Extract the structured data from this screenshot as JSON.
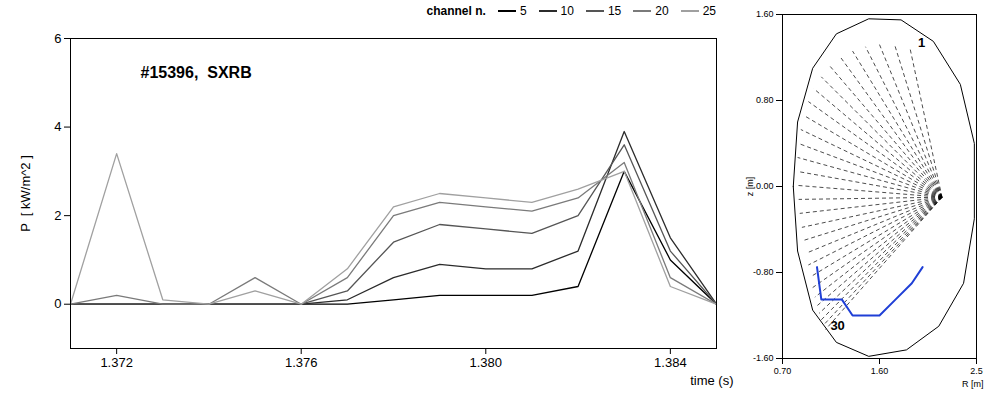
{
  "chart_data": [
    {
      "type": "line",
      "title": "#15396,  SXRB",
      "x_label": "time (s)",
      "y_label": "P  [ kW/m^2 ]",
      "legend_title": "channel n.",
      "legend": "top-right",
      "grid": false,
      "x": [
        1.371,
        1.372,
        1.373,
        1.374,
        1.375,
        1.376,
        1.377,
        1.378,
        1.379,
        1.38,
        1.381,
        1.382,
        1.383,
        1.384,
        1.385
      ],
      "xlim": [
        1.371,
        1.385
      ],
      "xticks": [
        1.372,
        1.376,
        {
          "value": 1.38,
          "label": "1.380"
        },
        1.384
      ],
      "ylim": [
        -1,
        6
      ],
      "yticks": [
        0,
        2,
        4,
        6
      ],
      "series": [
        {
          "name": "5",
          "color": "#000000",
          "values": [
            0,
            0,
            0,
            0,
            0,
            0,
            0,
            0.1,
            0.2,
            0.2,
            0.2,
            0.4,
            3.0,
            1.0,
            0
          ]
        },
        {
          "name": "10",
          "color": "#2b2b2b",
          "values": [
            0,
            0,
            0,
            0,
            0,
            0,
            0.1,
            0.6,
            0.9,
            0.8,
            0.8,
            1.2,
            3.9,
            1.5,
            0
          ]
        },
        {
          "name": "15",
          "color": "#555555",
          "values": [
            0,
            0,
            0,
            0,
            0,
            0,
            0.3,
            1.4,
            1.8,
            1.7,
            1.6,
            2.0,
            3.6,
            1.2,
            0
          ]
        },
        {
          "name": "20",
          "color": "#7a7a7a",
          "values": [
            0,
            0.2,
            0,
            0,
            0.6,
            0,
            0.6,
            2.0,
            2.3,
            2.2,
            2.1,
            2.4,
            3.2,
            0.6,
            0
          ]
        },
        {
          "name": "25",
          "color": "#a0a0a0",
          "values": [
            0,
            3.4,
            0.1,
            0,
            0.3,
            0,
            0.8,
            2.2,
            2.5,
            2.4,
            2.3,
            2.6,
            3.0,
            0.4,
            0
          ]
        }
      ]
    },
    {
      "type": "diagram",
      "x_label": "R [m]",
      "y_label": "z [m]",
      "xlim": [
        0.7,
        2.5
      ],
      "ylim": [
        -1.6,
        1.6
      ],
      "xticks": [
        {
          "value": 0.7,
          "label": "0.70"
        },
        {
          "value": 1.6,
          "label": "1.60"
        },
        2.5
      ],
      "yticks": [
        {
          "value": -1.6,
          "label": "-1.60"
        },
        {
          "value": -0.8,
          "label": "-0.80"
        },
        {
          "value": 0,
          "label": "0.00"
        },
        {
          "value": 0.8,
          "label": "0.80"
        },
        {
          "value": 1.6,
          "label": "1.60"
        }
      ],
      "color": "#000000",
      "outline": [
        [
          0.8,
          0
        ],
        [
          0.84,
          0.6
        ],
        [
          0.98,
          1.1
        ],
        [
          1.2,
          1.42
        ],
        [
          1.5,
          1.56
        ],
        [
          1.8,
          1.55
        ],
        [
          2.1,
          1.35
        ],
        [
          2.35,
          0.95
        ],
        [
          2.48,
          0.4
        ],
        [
          2.48,
          -0.3
        ],
        [
          2.38,
          -0.9
        ],
        [
          2.15,
          -1.3
        ],
        [
          1.85,
          -1.52
        ],
        [
          1.5,
          -1.58
        ],
        [
          1.2,
          -1.45
        ],
        [
          0.98,
          -1.15
        ],
        [
          0.84,
          -0.6
        ],
        [
          0.8,
          0
        ]
      ],
      "divertor": {
        "color": "#1f3fd6",
        "points": [
          [
            1.02,
            -0.75
          ],
          [
            1.06,
            -1.05
          ],
          [
            1.25,
            -1.05
          ],
          [
            1.35,
            -1.2
          ],
          [
            1.6,
            -1.2
          ],
          [
            1.75,
            -1.05
          ],
          [
            1.9,
            -0.9
          ],
          [
            2.0,
            -0.75
          ]
        ]
      },
      "detector": [
        2.18,
        -0.1
      ],
      "chords": [
        {
          "n": 1,
          "R": 1.88,
          "z": 1.3
        },
        {
          "n": 2,
          "R": 1.74,
          "z": 1.32
        },
        {
          "n": 3,
          "R": 1.6,
          "z": 1.32
        },
        {
          "n": 4,
          "R": 1.47,
          "z": 1.3
        },
        {
          "n": 5,
          "R": 1.35,
          "z": 1.26
        },
        {
          "n": 6,
          "R": 1.24,
          "z": 1.2
        },
        {
          "n": 7,
          "R": 1.14,
          "z": 1.12
        },
        {
          "n": 8,
          "R": 1.06,
          "z": 1.02
        },
        {
          "n": 9,
          "R": 0.99,
          "z": 0.91
        },
        {
          "n": 10,
          "R": 0.94,
          "z": 0.79
        },
        {
          "n": 11,
          "R": 0.9,
          "z": 0.66
        },
        {
          "n": 12,
          "R": 0.87,
          "z": 0.53
        },
        {
          "n": 13,
          "R": 0.85,
          "z": 0.4
        },
        {
          "n": 14,
          "R": 0.84,
          "z": 0.27
        },
        {
          "n": 15,
          "R": 0.84,
          "z": 0.14
        },
        {
          "n": 16,
          "R": 0.84,
          "z": 0.01
        },
        {
          "n": 17,
          "R": 0.85,
          "z": -0.12
        },
        {
          "n": 18,
          "R": 0.86,
          "z": -0.25
        },
        {
          "n": 19,
          "R": 0.88,
          "z": -0.38
        },
        {
          "n": 20,
          "R": 0.9,
          "z": -0.5
        },
        {
          "n": 21,
          "R": 0.92,
          "z": -0.62
        },
        {
          "n": 22,
          "R": 0.94,
          "z": -0.73
        },
        {
          "n": 23,
          "R": 0.96,
          "z": -0.84
        },
        {
          "n": 24,
          "R": 0.98,
          "z": -0.94
        },
        {
          "n": 25,
          "R": 1.0,
          "z": -1.03
        },
        {
          "n": 26,
          "R": 1.02,
          "z": -1.11
        },
        {
          "n": 27,
          "R": 1.04,
          "z": -1.18
        },
        {
          "n": 28,
          "R": 1.06,
          "z": -1.24
        },
        {
          "n": 29,
          "R": 1.08,
          "z": -1.29
        },
        {
          "n": 30,
          "R": 1.1,
          "z": -1.33
        }
      ],
      "labeled_chords": [
        1,
        30
      ]
    }
  ]
}
